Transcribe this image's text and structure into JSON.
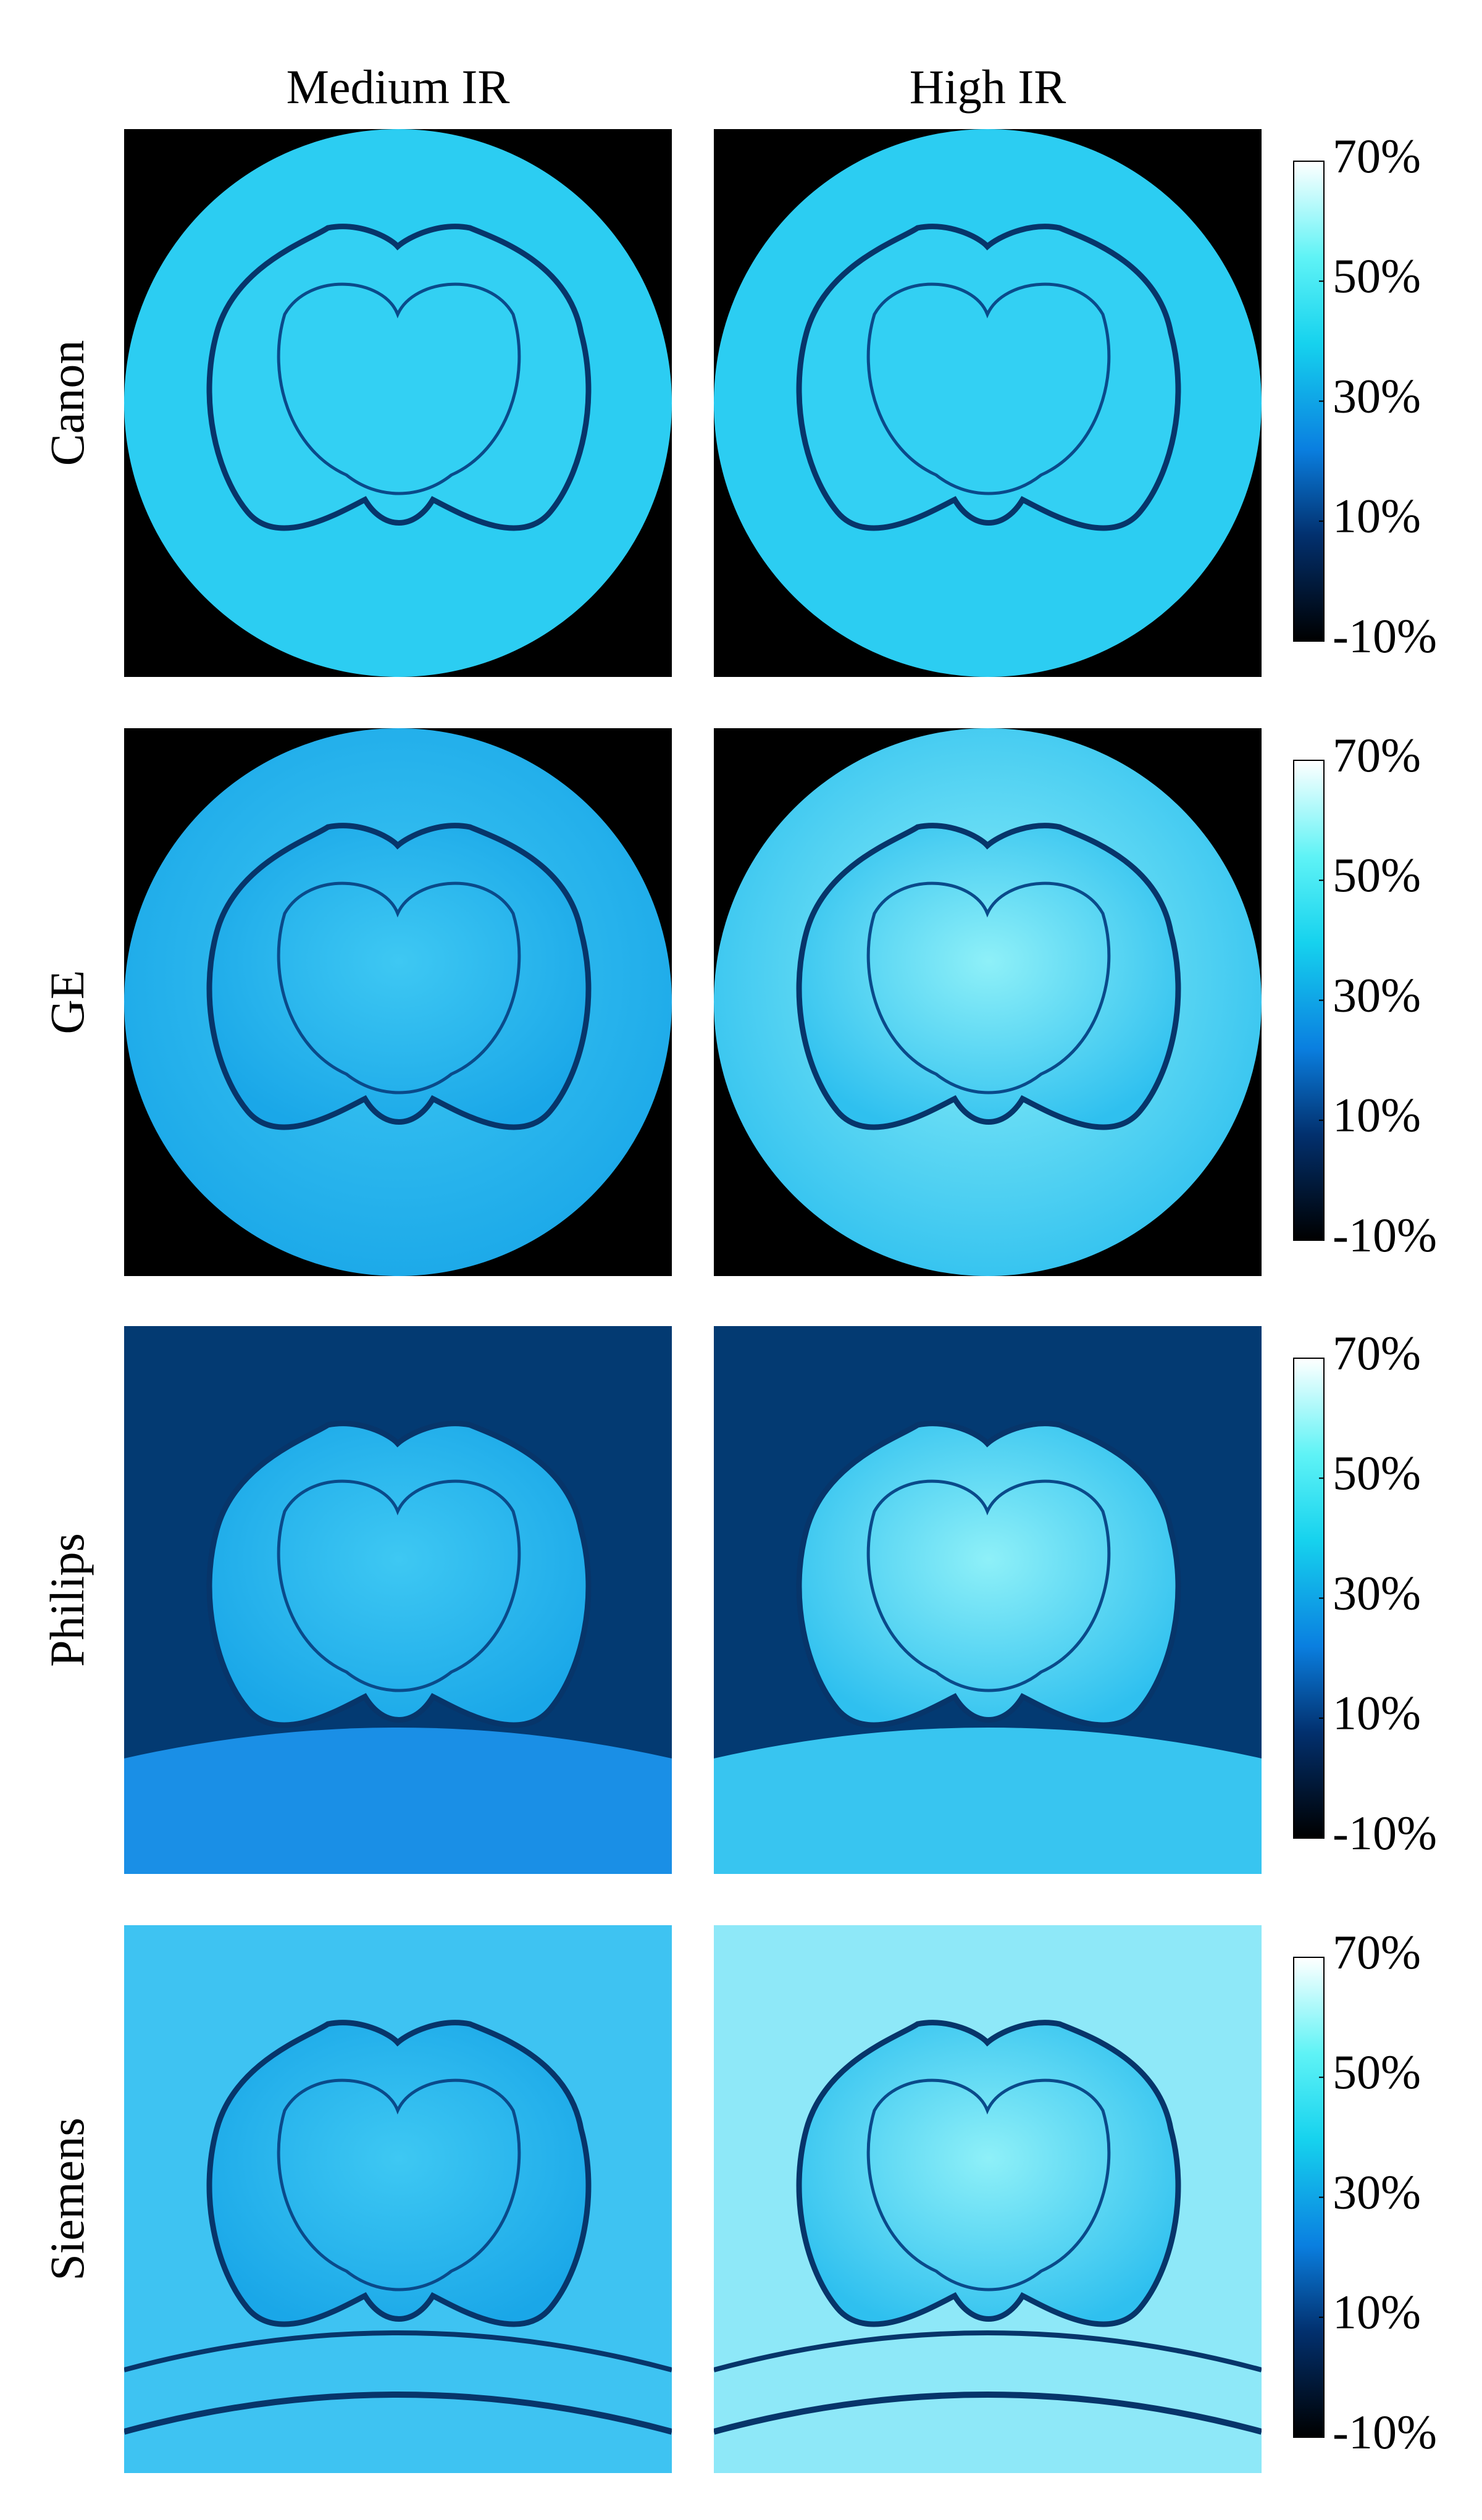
{
  "columns": [
    "Medium IR",
    "High IR"
  ],
  "rows": [
    "Canon",
    "GE",
    "Philips",
    "Siemens"
  ],
  "colorbar": {
    "lim": [
      -10,
      70
    ],
    "ticks": [
      {
        "value": -10,
        "label": "-10%"
      },
      {
        "value": 10,
        "label": "10%"
      },
      {
        "value": 30,
        "label": "30%"
      },
      {
        "value": 50,
        "label": "50%"
      },
      {
        "value": 70,
        "label": "70%"
      }
    ]
  }
}
